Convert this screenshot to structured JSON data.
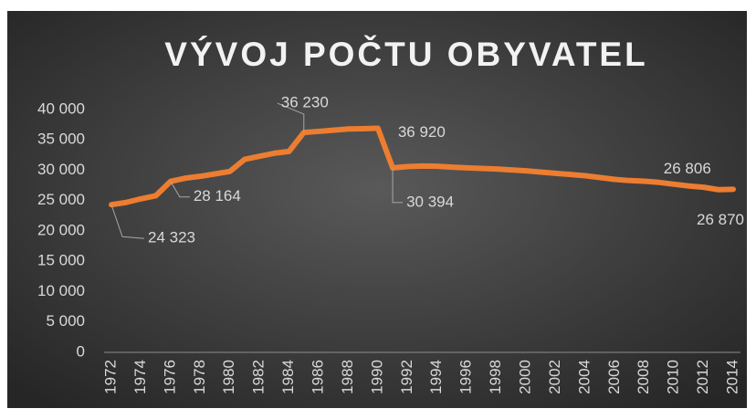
{
  "chart_data": {
    "type": "line",
    "title": "VÝVOJ POČTU OBYVATEL",
    "x": [
      1972,
      1973,
      1974,
      1975,
      1976,
      1977,
      1978,
      1979,
      1980,
      1981,
      1982,
      1983,
      1984,
      1985,
      1986,
      1987,
      1988,
      1989,
      1990,
      1991,
      1992,
      1993,
      1994,
      1995,
      1996,
      1997,
      1998,
      1999,
      2000,
      2001,
      2002,
      2003,
      2004,
      2005,
      2006,
      2007,
      2008,
      2009,
      2010,
      2011,
      2012,
      2013,
      2014
    ],
    "values": [
      24323,
      24700,
      25300,
      25800,
      28164,
      28700,
      29000,
      29400,
      29800,
      31800,
      32300,
      32800,
      33100,
      36230,
      36400,
      36600,
      36800,
      36850,
      36920,
      30394,
      30600,
      30700,
      30650,
      30500,
      30400,
      30300,
      30200,
      30050,
      29900,
      29700,
      29500,
      29300,
      29100,
      28800,
      28500,
      28300,
      28200,
      28000,
      27700,
      27400,
      27200,
      26806,
      26870
    ],
    "value_labels": [
      "24 323",
      null,
      null,
      null,
      "28 164",
      null,
      null,
      null,
      null,
      null,
      null,
      null,
      null,
      "36 230",
      null,
      null,
      null,
      null,
      "36 920",
      "30 394",
      null,
      null,
      null,
      null,
      null,
      null,
      null,
      null,
      null,
      null,
      null,
      null,
      null,
      null,
      null,
      null,
      null,
      null,
      null,
      null,
      null,
      "26 806",
      "26 870"
    ],
    "color": "#ed7d31",
    "xlim": [
      1972,
      2014
    ],
    "xticks": [
      1972,
      1974,
      1976,
      1978,
      1980,
      1982,
      1984,
      1986,
      1988,
      1990,
      1992,
      1994,
      1996,
      1998,
      2000,
      2002,
      2004,
      2006,
      2008,
      2010,
      2012,
      2014
    ],
    "ylim": [
      0,
      40000
    ],
    "yticks": [
      0,
      {
        "value": 5000,
        "label": "5 000"
      },
      {
        "value": 10000,
        "label": "10 000"
      },
      {
        "value": 15000,
        "label": "15 000"
      },
      {
        "value": 20000,
        "label": "20 000"
      },
      {
        "value": 25000,
        "label": "25 000"
      },
      {
        "value": 30000,
        "label": "30 000"
      },
      {
        "value": 35000,
        "label": "35 000"
      },
      {
        "value": 40000,
        "label": "40 000"
      }
    ],
    "grid": false
  }
}
